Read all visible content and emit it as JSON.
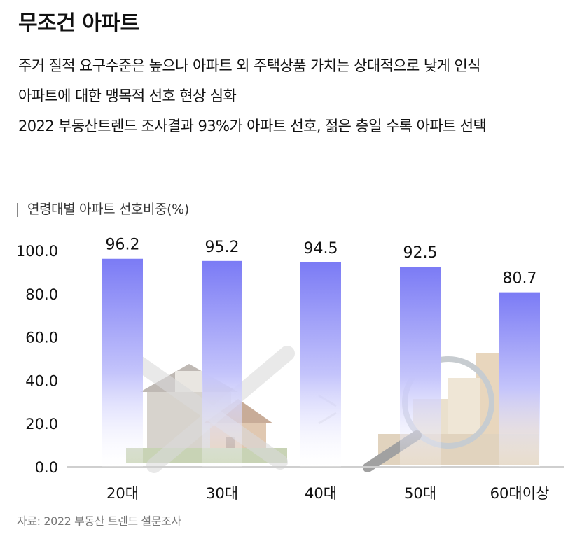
{
  "header": {
    "title": "무조건 아파트",
    "subtitles": [
      "주거 질적 요구수준은 높으나 아파트 외 주택상품 가치는 상대적으로 낮게 인식",
      "아파트에 대한 맹목적 선호 현상 심화",
      "2022 부동산트렌드 조사결과 93%가 아파트 선호, 젊은 층일 수록 아파트 선택"
    ]
  },
  "chart_data": {
    "type": "bar",
    "title": "연령대별 아파트 선호비중(%)",
    "categories": [
      "20대",
      "30대",
      "40대",
      "50대",
      "60대이상"
    ],
    "values": [
      96.2,
      95.2,
      94.5,
      92.5,
      80.7
    ],
    "value_labels": [
      "96.2",
      "95.2",
      "94.5",
      "92.5",
      "80.7"
    ],
    "yticks": [
      "100.0",
      "80.0",
      "60.0",
      "40.0",
      "20.0",
      "0.0"
    ],
    "ytick_values": [
      100,
      80,
      60,
      40,
      20,
      0
    ],
    "ylim": [
      0,
      100
    ],
    "grid": false,
    "bar_color_top": "#7b7bf5",
    "bar_color_bottom": "#ffffff"
  },
  "footer": {
    "source": "자료: 2022 부동산 트렌드 설문조사"
  }
}
